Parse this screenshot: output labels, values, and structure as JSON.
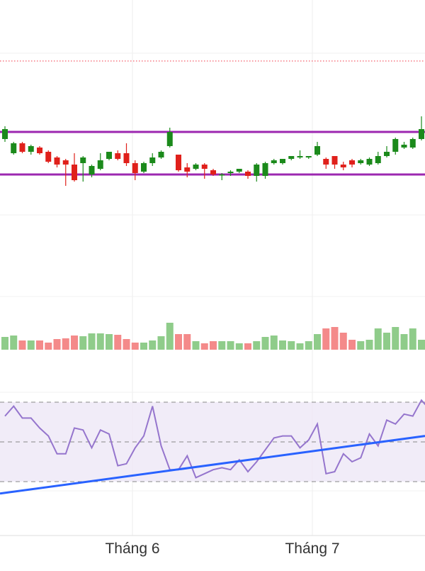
{
  "chart_data": [
    {
      "type": "candlestick",
      "x": [
        "1",
        "2",
        "3",
        "4",
        "5",
        "6",
        "7",
        "8",
        "9",
        "10",
        "11",
        "12",
        "13",
        "14",
        "15",
        "16",
        "17",
        "18",
        "19",
        "20",
        "21",
        "22",
        "23",
        "24",
        "25",
        "26",
        "27",
        "28",
        "29",
        "30",
        "31",
        "32",
        "33",
        "34",
        "35",
        "36",
        "37",
        "38",
        "39",
        "40",
        "41",
        "42",
        "43",
        "44",
        "45",
        "46",
        "47",
        "48",
        "49",
        "50"
      ],
      "open": [
        24.2,
        23.2,
        23.9,
        23.3,
        23.6,
        23.3,
        22.9,
        22.7,
        22.4,
        22.5,
        21.7,
        22.1,
        22.8,
        23.2,
        23.2,
        22.5,
        21.9,
        22.5,
        22.9,
        23.7,
        23.1,
        22.2,
        22.1,
        22.4,
        22.0,
        21.7,
        21.8,
        21.9,
        21.9,
        21.6,
        21.6,
        22.5,
        22.5,
        22.8,
        22.9,
        22.9,
        23.1,
        22.8,
        23.0,
        22.4,
        22.7,
        22.5,
        22.4,
        22.5,
        23.0,
        23.3,
        23.6,
        23.6,
        24.2,
        24.8
      ],
      "close": [
        24.9,
        23.9,
        23.3,
        23.7,
        23.2,
        22.6,
        22.4,
        22.4,
        21.3,
        22.9,
        22.3,
        22.7,
        23.3,
        22.8,
        22.5,
        21.8,
        22.5,
        22.9,
        23.3,
        24.7,
        22.0,
        21.9,
        22.4,
        22.1,
        21.7,
        21.7,
        21.9,
        22.1,
        21.6,
        22.4,
        22.5,
        22.7,
        22.8,
        23.0,
        23.0,
        23.0,
        23.7,
        22.4,
        22.4,
        22.2,
        22.4,
        22.7,
        22.8,
        23.0,
        23.3,
        24.2,
        23.8,
        24.2,
        24.9,
        24.2
      ],
      "high": [
        25.1,
        24.0,
        24.0,
        23.8,
        23.7,
        23.4,
        23.0,
        22.8,
        23.2,
        23.0,
        22.4,
        23.2,
        23.3,
        23.4,
        23.9,
        22.7,
        22.6,
        23.2,
        23.4,
        25.0,
        23.1,
        22.5,
        22.5,
        22.5,
        22.1,
        21.8,
        22.0,
        22.1,
        22.0,
        22.5,
        22.6,
        22.8,
        22.8,
        23.0,
        23.4,
        23.0,
        24.0,
        22.9,
        23.0,
        22.6,
        22.8,
        22.8,
        22.9,
        23.3,
        23.7,
        24.3,
        24.0,
        24.3,
        25.8,
        24.9
      ],
      "low": [
        24.0,
        23.1,
        23.2,
        23.1,
        23.1,
        22.5,
        22.2,
        20.9,
        21.2,
        21.2,
        21.5,
        22.0,
        22.7,
        22.7,
        22.3,
        21.3,
        21.8,
        22.3,
        22.8,
        23.6,
        21.9,
        21.5,
        22.0,
        21.4,
        21.6,
        21.3,
        21.6,
        21.8,
        21.4,
        21.2,
        21.4,
        22.4,
        22.4,
        22.7,
        22.8,
        22.8,
        23.0,
        22.1,
        22.1,
        22.0,
        22.2,
        22.4,
        22.3,
        22.4,
        22.9,
        23.1,
        23.5,
        23.5,
        24.1,
        23.9
      ],
      "ylim": [
        18,
        34
      ],
      "reference_line": {
        "value": 29.7,
        "style": "dotted",
        "color": "#f23645"
      },
      "channel": {
        "upper": 24.7,
        "lower": 21.7,
        "color": "#9c27b0"
      }
    },
    {
      "type": "bar",
      "x": [
        "1",
        "2",
        "3",
        "4",
        "5",
        "6",
        "7",
        "8",
        "9",
        "10",
        "11",
        "12",
        "13",
        "14",
        "15",
        "16",
        "17",
        "18",
        "19",
        "20",
        "21",
        "22",
        "23",
        "24",
        "25",
        "26",
        "27",
        "28",
        "29",
        "30",
        "31",
        "32",
        "33",
        "34",
        "35",
        "36",
        "37",
        "38",
        "39",
        "40",
        "41",
        "42",
        "43",
        "44",
        "45",
        "46",
        "47",
        "48",
        "49",
        "50"
      ],
      "values": [
        18,
        20,
        13,
        13,
        13,
        10,
        15,
        16,
        20,
        19,
        23,
        23,
        22,
        21,
        15,
        10,
        10,
        13,
        19,
        38,
        22,
        22,
        12,
        9,
        12,
        12,
        12,
        9,
        9,
        12,
        18,
        20,
        13,
        12,
        9,
        12,
        22,
        30,
        32,
        24,
        14,
        12,
        14,
        30,
        24,
        32,
        22,
        30,
        14,
        36
      ],
      "ylim": [
        0,
        100
      ],
      "up_color": "#26a69a",
      "down_color": "#ef5350"
    },
    {
      "type": "line",
      "x": [
        "1",
        "2",
        "3",
        "4",
        "5",
        "6",
        "7",
        "8",
        "9",
        "10",
        "11",
        "12",
        "13",
        "14",
        "15",
        "16",
        "17",
        "18",
        "19",
        "20",
        "21",
        "22",
        "23",
        "24",
        "25",
        "26",
        "27",
        "28",
        "29",
        "30",
        "31",
        "32",
        "33",
        "34",
        "35",
        "36",
        "37",
        "38",
        "39",
        "40",
        "41",
        "42",
        "43",
        "44",
        "45",
        "46",
        "47",
        "48",
        "49",
        "50"
      ],
      "values": [
        63,
        68,
        62,
        62,
        57,
        53,
        44,
        44,
        57,
        56,
        47,
        56,
        54,
        38,
        39,
        47,
        53,
        68,
        48,
        36,
        36,
        43,
        32,
        34,
        36,
        37,
        36,
        41,
        35,
        40,
        46,
        52,
        53,
        53,
        47,
        51,
        59,
        34,
        35,
        44,
        40,
        42,
        54,
        48,
        61,
        59,
        64,
        63,
        71,
        66
      ],
      "ylim": [
        0,
        100
      ],
      "levels": [
        70,
        50,
        30
      ],
      "trendline": {
        "from": 24,
        "to": 53
      },
      "line_color": "#9575cd"
    },
    {
      "type": "time-axis",
      "labels": [
        "Tháng 6",
        "Tháng 7"
      ]
    }
  ],
  "colors": {
    "up": "#26a69a",
    "down": "#ef5350",
    "channel": "#9c27b0",
    "rsi": "#9575cd",
    "trend": "#2962ff"
  }
}
